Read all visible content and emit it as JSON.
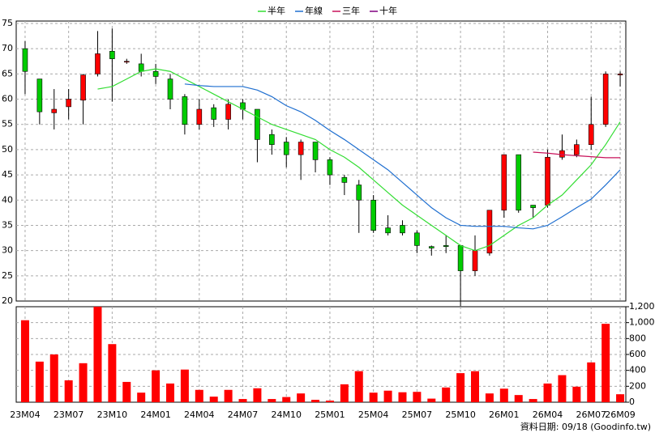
{
  "chart_data": [
    {
      "type": "candlestick",
      "categories": [
        "23M04",
        null,
        null,
        "23M07",
        null,
        null,
        "23M10",
        null,
        null,
        "24M01",
        null,
        null,
        "24M04",
        null,
        null,
        "24M07",
        null,
        null,
        "24M10",
        null,
        null,
        "25M01",
        null,
        null,
        "25M04",
        null,
        null,
        "25M07",
        null,
        null,
        "25M10",
        null,
        null,
        "26M01",
        null,
        null,
        "26M04",
        null,
        null,
        "26M07",
        null,
        "26M09"
      ],
      "open": [
        70,
        64,
        57.3,
        58.5,
        59.8,
        65,
        69.5,
        67.5,
        67,
        65.5,
        64,
        60.5,
        55,
        58.3,
        56,
        59.3,
        58,
        53,
        51.5,
        49,
        51.5,
        48,
        44.5,
        43,
        40,
        34.5,
        35,
        33.5,
        30.8,
        31,
        31,
        26,
        29.5,
        38,
        49,
        39,
        39,
        48.5,
        49,
        51,
        55,
        64.8
      ],
      "high": [
        71.5,
        64,
        62,
        62,
        65,
        73.5,
        74,
        68,
        69,
        67,
        65,
        61,
        60,
        59,
        60,
        60,
        58,
        54,
        52.5,
        52,
        51.5,
        48.5,
        45,
        44,
        41,
        37,
        36,
        34,
        31,
        33,
        31,
        33,
        38,
        49,
        49,
        39,
        50,
        53,
        52,
        60.5,
        65.5,
        65.5
      ],
      "low": [
        61,
        55,
        54,
        56,
        55,
        64.5,
        59.5,
        67,
        64.5,
        63,
        58,
        53,
        54,
        54.5,
        54,
        56,
        47.5,
        49,
        46.5,
        44,
        45.5,
        43,
        41,
        33.5,
        33.5,
        33,
        33,
        29.5,
        29,
        29.5,
        19,
        25,
        29,
        36.5,
        37.5,
        36.5,
        38.5,
        48,
        48.5,
        50,
        54.5,
        62.5
      ],
      "close": [
        65.5,
        57.5,
        58,
        60,
        64.8,
        69,
        68,
        67.5,
        65.5,
        64.5,
        60,
        55,
        58,
        56,
        59,
        58,
        52,
        51,
        49,
        51.5,
        48,
        45,
        43.5,
        40,
        34,
        33.5,
        33.5,
        31,
        30.5,
        30.8,
        26,
        30,
        38,
        49,
        38,
        38.5,
        48.5,
        49.8,
        51,
        55,
        65,
        65
      ],
      "up_color": "#ff0000",
      "down_color": "#00cc00",
      "ylim": [
        20,
        75
      ],
      "yticks": [
        20,
        25,
        30,
        35,
        40,
        45,
        50,
        55,
        60,
        65,
        70,
        75
      ],
      "grid": true,
      "series": [
        {
          "name": "半年",
          "color": "#33dd33",
          "values": [
            null,
            null,
            null,
            null,
            null,
            62,
            62.5,
            64,
            65.5,
            66,
            65.5,
            64,
            62.5,
            61,
            59.5,
            58,
            56.5,
            55,
            54,
            53,
            52,
            50,
            48.5,
            46.5,
            44,
            41.5,
            39,
            37,
            35,
            33,
            31,
            30,
            31,
            33,
            35,
            36.5,
            39,
            41,
            44,
            47,
            51,
            55.5
          ]
        },
        {
          "name": "年線",
          "color": "#1f6fd0",
          "values": [
            null,
            null,
            null,
            null,
            null,
            null,
            null,
            null,
            null,
            null,
            null,
            63,
            62.7,
            62.5,
            62.5,
            62.5,
            61.8,
            60.5,
            58.7,
            57.5,
            55.8,
            53.8,
            52,
            50,
            48,
            46,
            43.5,
            41,
            38.5,
            36.5,
            35,
            34.8,
            34.8,
            34.8,
            34.5,
            34.3,
            35,
            36.7,
            38.5,
            40.2,
            43,
            46
          ]
        },
        {
          "name": "三年",
          "color": "#c8125a",
          "values": [
            null,
            null,
            null,
            null,
            null,
            null,
            null,
            null,
            null,
            null,
            null,
            null,
            null,
            null,
            null,
            null,
            null,
            null,
            null,
            null,
            null,
            null,
            null,
            null,
            null,
            null,
            null,
            null,
            null,
            null,
            null,
            null,
            null,
            null,
            null,
            49.5,
            49.3,
            49,
            48.8,
            48.6,
            48.4,
            48.4
          ]
        },
        {
          "name": "十年",
          "color": "#800080",
          "values": [
            null,
            null,
            null,
            null,
            null,
            null,
            null,
            null,
            null,
            null,
            null,
            null,
            null,
            null,
            null,
            null,
            null,
            null,
            null,
            null,
            null,
            null,
            null,
            null,
            null,
            null,
            null,
            null,
            null,
            null,
            null,
            null,
            null,
            null,
            null,
            null,
            null,
            null,
            null,
            null,
            null,
            null
          ]
        }
      ]
    },
    {
      "type": "bar",
      "color": "#ff0000",
      "values": [
        1030,
        510,
        600,
        275,
        490,
        1200,
        730,
        255,
        120,
        400,
        235,
        410,
        155,
        70,
        155,
        40,
        175,
        40,
        65,
        110,
        30,
        20,
        225,
        390,
        120,
        145,
        125,
        130,
        45,
        185,
        365,
        390,
        110,
        170,
        90,
        40,
        235,
        340,
        195,
        500,
        985,
        100
      ],
      "ylim": [
        0,
        1200
      ],
      "yticks": [
        0,
        200,
        400,
        600,
        800,
        {
          "value": 1000,
          "label": "1,000"
        },
        {
          "value": 1200,
          "label": "1,200"
        }
      ],
      "grid": true,
      "source": "資料日期: 09/18 (Goodinfo.tw)"
    }
  ]
}
